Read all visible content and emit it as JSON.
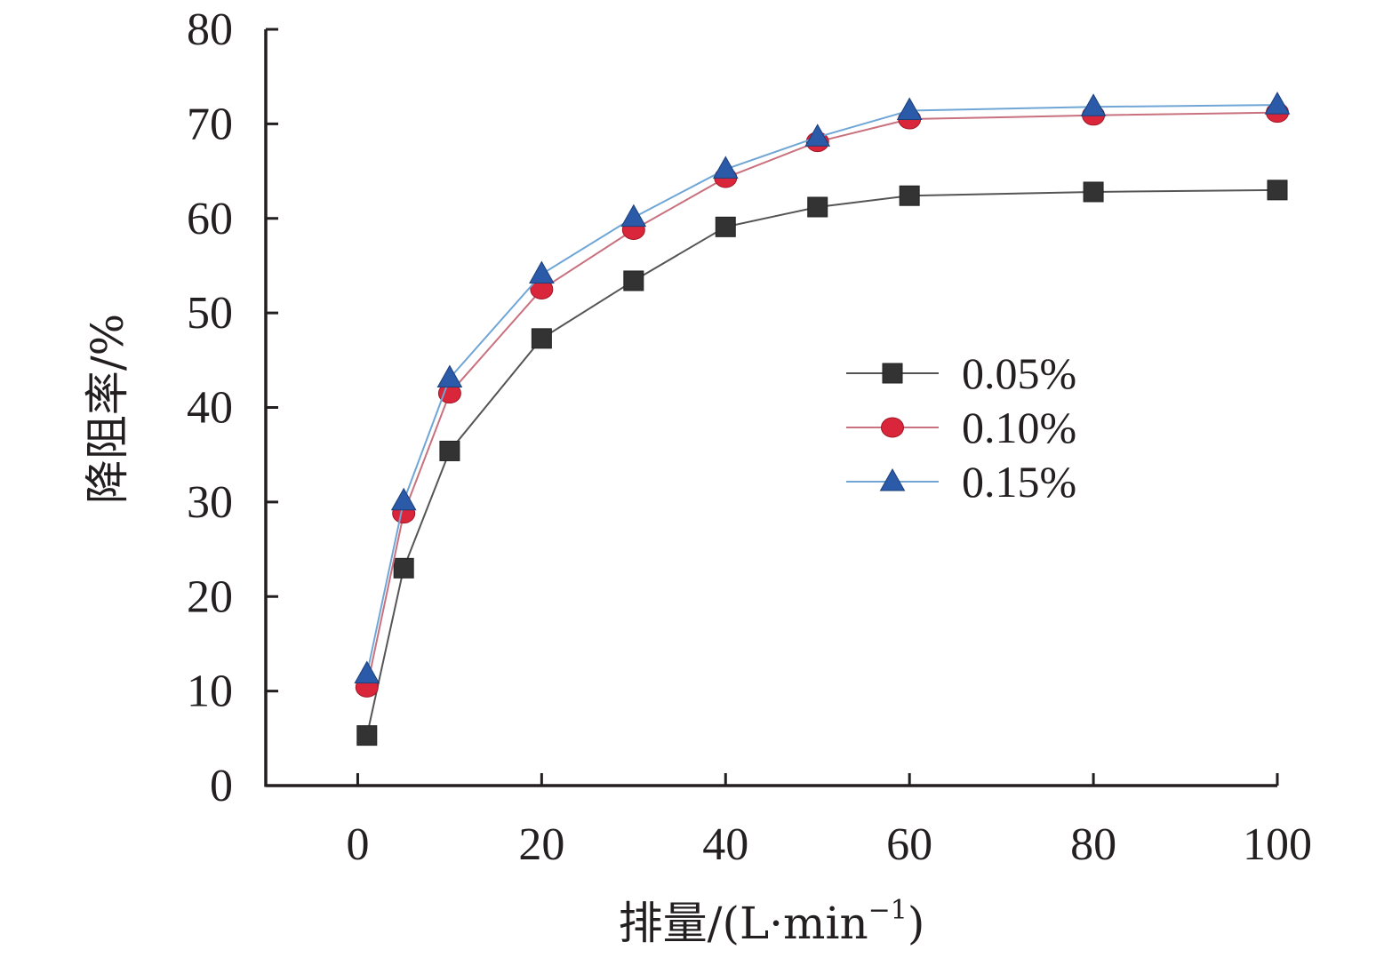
{
  "chart_data": {
    "type": "line",
    "title": "",
    "xlabel": "排量/(L·min",
    "xlabel_sup": "−1",
    "xlabel_close": ")",
    "ylabel": "降阻率/%",
    "xlim": [
      -10,
      100
    ],
    "ylim": [
      0,
      80
    ],
    "xticks": [
      0,
      20,
      40,
      60,
      80,
      100
    ],
    "yticks": [
      0,
      10,
      20,
      30,
      40,
      50,
      60,
      70,
      80
    ],
    "grid": false,
    "legend_position": "right",
    "x": [
      1,
      5,
      10,
      20,
      30,
      40,
      50,
      60,
      80,
      100
    ],
    "series": [
      {
        "name": "0.05%",
        "marker": "square",
        "color": "#333333",
        "line_color": "#555555",
        "values": [
          5.3,
          23.0,
          35.4,
          47.3,
          53.4,
          59.1,
          61.2,
          62.4,
          62.8,
          63.0
        ]
      },
      {
        "name": "0.10%",
        "marker": "circle",
        "color": "#d9263a",
        "line_color": "#c9717e",
        "values": [
          10.4,
          28.8,
          41.5,
          52.5,
          58.8,
          64.3,
          68.1,
          70.5,
          70.9,
          71.2
        ]
      },
      {
        "name": "0.15%",
        "marker": "triangle",
        "color": "#2a5aa8",
        "line_color": "#6fa6d6",
        "values": [
          11.8,
          30.1,
          43.1,
          54.1,
          60.1,
          65.2,
          68.6,
          71.4,
          71.8,
          72.0
        ]
      }
    ]
  }
}
